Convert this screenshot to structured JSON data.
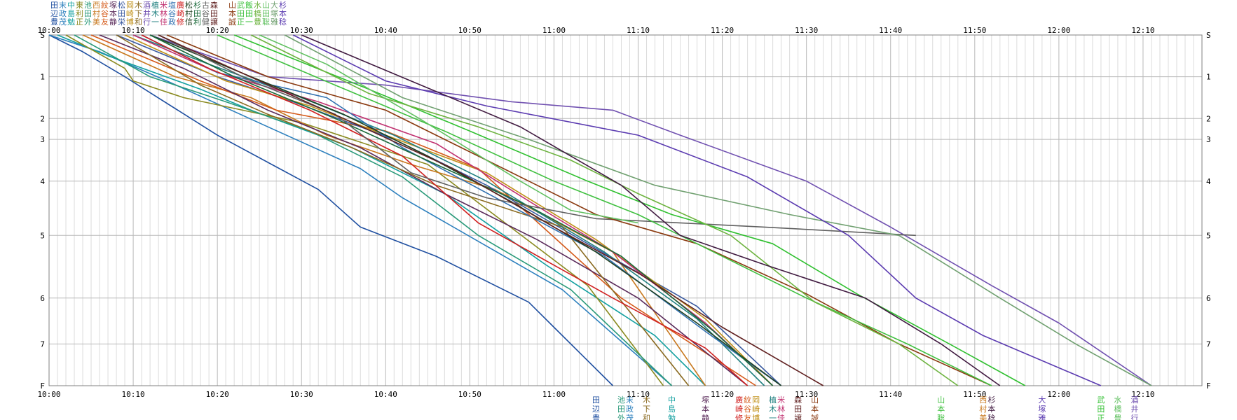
{
  "chart_data": {
    "type": "line",
    "title": "",
    "xlabel": "",
    "ylabel": "",
    "xlim": [
      "10:00",
      "12:17"
    ],
    "ylim": [
      "S",
      "F"
    ],
    "grid": true,
    "time_ticks": [
      "10:00",
      "10:10",
      "10:20",
      "10:30",
      "10:40",
      "10:50",
      "11:00",
      "11:10",
      "11:20",
      "11:30",
      "11:40",
      "11:50",
      "12:00",
      "12:10"
    ],
    "station_ticks": [
      {
        "label": "S",
        "pos": 0
      },
      {
        "label": "1",
        "pos": 1
      },
      {
        "label": "2",
        "pos": 2
      },
      {
        "label": "3",
        "pos": 2.5
      },
      {
        "label": "4",
        "pos": 3.5
      },
      {
        "label": "5",
        "pos": 4.8
      },
      {
        "label": "6",
        "pos": 6.3
      },
      {
        "label": "7",
        "pos": 7.4
      },
      {
        "label": "F",
        "pos": 8.4
      }
    ],
    "top_legend_rows": [
      "田末中東池西紋塚松岡木酒植米塩廣松杉古森",
      "辺政島利田村谷本田崎下井木林谷崎村田谷田",
      "豊茂勉正外美友静栄博和行一佳政修信利健譲"
    ],
    "top_legend_rows_2": [
      "山武飯水山大杉",
      "本田田橋田塚本",
      "誠正一豊聡雅稔"
    ],
    "series": [
      {
        "name": "田辺豊",
        "color": "#1f4fa0",
        "times": [
          "10:00",
          "10:04",
          "10:09",
          "10:20",
          "10:32",
          "10:37",
          "10:46",
          "10:57",
          "11:00",
          "11:07"
        ],
        "stations": [
          0,
          0.4,
          1.0,
          2.4,
          3.7,
          4.6,
          5.3,
          6.4,
          7.0,
          8.4
        ]
      },
      {
        "name": "末政茂",
        "color": "#2b7fbd",
        "times": [
          "10:00",
          "10:06",
          "10:14",
          "10:26",
          "10:37",
          "10:42",
          "11:01",
          "11:14"
        ],
        "stations": [
          0,
          0.4,
          1.1,
          2.2,
          3.2,
          3.9,
          6.1,
          8.4
        ]
      },
      {
        "name": "中島勉",
        "color": "#13a0a0",
        "times": [
          "10:01",
          "10:07",
          "10:18",
          "10:24",
          "10:36",
          "10:47",
          "10:59",
          "11:12",
          "11:18"
        ],
        "stations": [
          0,
          0.5,
          1.3,
          1.8,
          2.7,
          3.8,
          5.5,
          7.2,
          8.4
        ]
      },
      {
        "name": "東利正",
        "color": "#8a8a20",
        "times": [
          "10:02",
          "10:09",
          "10:10",
          "10:16",
          "10:23",
          "10:30",
          "10:45",
          "11:04",
          "11:13"
        ],
        "stations": [
          0,
          0.8,
          1.1,
          1.5,
          1.8,
          2.1,
          3.1,
          6.0,
          8.4
        ]
      },
      {
        "name": "池田外",
        "color": "#2a9a7a",
        "times": [
          "10:03",
          "10:12",
          "10:21",
          "10:31",
          "10:42",
          "10:51",
          "11:02",
          "11:14"
        ],
        "stations": [
          0,
          1.0,
          1.6,
          2.3,
          3.4,
          4.8,
          6.1,
          8.4
        ]
      },
      {
        "name": "西村美",
        "color": "#c8781e",
        "times": [
          "10:04",
          "10:15",
          "10:24",
          "10:33",
          "10:43",
          "10:53",
          "11:07",
          "11:18"
        ],
        "stations": [
          0,
          1.0,
          1.5,
          2.4,
          3.1,
          3.7,
          5.2,
          8.4
        ]
      },
      {
        "name": "紋谷友",
        "color": "#d55a1a",
        "times": [
          "10:05",
          "10:18",
          "10:27",
          "10:40",
          "10:51",
          "11:08",
          "11:24"
        ],
        "stations": [
          0,
          1.1,
          1.8,
          2.3,
          3.2,
          6.3,
          8.4
        ]
      },
      {
        "name": "塚本静",
        "color": "#5a2a5a",
        "times": [
          "10:06",
          "10:16",
          "10:26",
          "10:37",
          "10:47",
          "10:58",
          "11:10",
          "11:23"
        ],
        "stations": [
          0,
          0.8,
          1.8,
          2.7,
          3.8,
          4.9,
          6.3,
          8.4
        ]
      },
      {
        "name": "松田栄",
        "color": "#3a5aa0",
        "times": [
          "10:08",
          "10:20",
          "10:29",
          "10:41",
          "10:52",
          "11:04",
          "11:17",
          "11:27"
        ],
        "stations": [
          0,
          1.0,
          1.6,
          2.5,
          3.6,
          5.0,
          6.5,
          8.4
        ]
      },
      {
        "name": "岡崎博",
        "color": "#c09018",
        "times": [
          "10:09",
          "10:21",
          "10:31",
          "10:40",
          "10:52",
          "11:05",
          "11:18",
          "11:26"
        ],
        "stations": [
          0,
          1.1,
          1.7,
          2.4,
          3.3,
          4.9,
          6.8,
          8.4
        ]
      },
      {
        "name": "木下和",
        "color": "#8a6a20",
        "times": [
          "10:08",
          "10:18",
          "10:26",
          "10:36",
          "10:46",
          "11:01",
          "11:16"
        ],
        "stations": [
          0,
          1.2,
          1.9,
          2.7,
          3.6,
          4.6,
          8.4
        ]
      },
      {
        "name": "酒井行",
        "color": "#7050b0",
        "times": [
          "10:12",
          "10:26",
          "10:40",
          "10:55",
          "11:07",
          "11:15",
          "11:30",
          "11:40",
          "11:52",
          "12:00",
          "12:11"
        ],
        "stations": [
          0,
          1.0,
          1.2,
          1.6,
          1.8,
          2.4,
          3.5,
          4.6,
          6.0,
          6.9,
          8.4
        ]
      },
      {
        "name": "植木一",
        "color": "#208080",
        "times": [
          "10:10",
          "10:19",
          "10:30",
          "10:41",
          "10:52",
          "11:06",
          "11:17",
          "11:25"
        ],
        "stations": [
          0,
          0.7,
          1.5,
          2.4,
          3.5,
          5.2,
          6.8,
          8.4
        ]
      },
      {
        "name": "米林佳",
        "color": "#c03070",
        "times": [
          "10:10",
          "10:20",
          "10:32",
          "10:46",
          "10:58",
          "11:07",
          "11:18",
          "11:26"
        ],
        "stations": [
          0,
          0.9,
          1.6,
          2.6,
          4.1,
          5.2,
          6.9,
          8.4
        ]
      },
      {
        "name": "塩谷政",
        "color": "#3070b0",
        "times": [
          "10:11",
          "10:20",
          "10:33",
          "10:42",
          "10:54",
          "11:06",
          "11:18",
          "11:27"
        ],
        "stations": [
          0,
          0.9,
          1.5,
          2.7,
          4.0,
          5.3,
          7.1,
          8.4
        ]
      },
      {
        "name": "廣崎修",
        "color": "#d02020",
        "times": [
          "10:11",
          "10:19",
          "10:31",
          "10:42",
          "10:51",
          "11:07",
          "11:18",
          "11:23"
        ],
        "stations": [
          0,
          0.8,
          1.8,
          2.9,
          4.5,
          6.3,
          7.5,
          8.4
        ]
      },
      {
        "name": "松村信",
        "color": "#204020",
        "times": [
          "10:12",
          "10:24",
          "10:35",
          "10:45",
          "10:55",
          "11:05",
          "11:17",
          "11:27"
        ],
        "stations": [
          0,
          1.0,
          1.9,
          2.9,
          4.0,
          5.2,
          6.9,
          8.4
        ]
      },
      {
        "name": "杉田利",
        "color": "#1a6a3a",
        "times": [
          "10:12",
          "10:22",
          "10:34",
          "10:46",
          "10:57",
          "11:08",
          "11:19",
          "11:26"
        ],
        "stations": [
          0,
          1.0,
          2.0,
          3.1,
          4.1,
          5.3,
          7.1,
          8.4
        ]
      },
      {
        "name": "古谷健",
        "color": "#606060",
        "times": [
          "10:13",
          "10:24",
          "10:34",
          "10:43",
          "10:52",
          "11:05",
          "11:15",
          "11:25",
          "11:43"
        ],
        "stations": [
          0,
          1.1,
          1.9,
          3.3,
          3.9,
          4.4,
          4.5,
          4.6,
          4.8
        ]
      },
      {
        "name": "森田譲",
        "color": "#602020",
        "times": [
          "10:13",
          "10:25",
          "10:35",
          "10:48",
          "11:00",
          "11:10",
          "11:20",
          "11:32"
        ],
        "stations": [
          0,
          1.1,
          2.0,
          3.2,
          4.6,
          5.7,
          7.0,
          8.4
        ]
      },
      {
        "name": "山本誠",
        "color": "#8a3a10",
        "times": [
          "10:14",
          "10:26",
          "10:40",
          "10:52",
          "11:05",
          "11:17",
          "11:30",
          "11:41",
          "11:52"
        ],
        "stations": [
          0,
          1.0,
          1.8,
          3.0,
          4.3,
          5.0,
          6.2,
          7.4,
          8.4
        ]
      },
      {
        "name": "山本聡",
        "color": "#40c040",
        "times": [
          "10:20",
          "10:34",
          "10:47",
          "11:00",
          "11:10",
          "11:17",
          "11:30",
          "11:42",
          "11:52"
        ],
        "stations": [
          0,
          1.2,
          2.3,
          3.5,
          4.3,
          5.0,
          6.3,
          7.4,
          8.4
        ]
      },
      {
        "name": "武田正",
        "color": "#30c030",
        "times": [
          "10:22",
          "10:38",
          "10:50",
          "11:04",
          "11:14",
          "11:26",
          "11:36",
          "11:47",
          "11:56"
        ],
        "stations": [
          0,
          1.3,
          2.3,
          3.5,
          4.3,
          5.0,
          6.2,
          7.4,
          8.4
        ]
      },
      {
        "name": "飯田一",
        "color": "#6db33f",
        "times": [
          "10:24",
          "10:38",
          "10:51",
          "11:02",
          "11:10",
          "11:21",
          "11:31",
          "11:41",
          "11:48"
        ],
        "stations": [
          0,
          1.4,
          2.2,
          3.0,
          3.8,
          4.8,
          6.4,
          7.4,
          8.4
        ]
      },
      {
        "name": "水橋豊",
        "color": "#60c060",
        "times": [
          "10:25",
          "10:33",
          "10:44",
          "10:56",
          "11:02",
          "11:10"
        ],
        "stations": [
          0,
          0.7,
          2.0,
          3.5,
          4.2,
          4.5
        ]
      },
      {
        "name": "山田聡",
        "color": "#70a070",
        "times": [
          "10:28",
          "10:42",
          "10:57",
          "11:12",
          "11:28",
          "11:41",
          "11:53",
          "12:02",
          "12:11"
        ],
        "stations": [
          0,
          1.5,
          2.5,
          3.6,
          4.3,
          4.8,
          6.3,
          7.4,
          8.4
        ]
      },
      {
        "name": "大塚雅",
        "color": "#5a3ab0",
        "times": [
          "10:29",
          "10:40",
          "10:52",
          "11:10",
          "11:23",
          "11:35",
          "11:43",
          "11:51",
          "12:05"
        ],
        "stations": [
          0,
          1.1,
          1.7,
          2.4,
          3.4,
          4.8,
          6.3,
          7.2,
          8.4
        ]
      },
      {
        "name": "杉本稔",
        "color": "#401a40",
        "times": [
          "10:30",
          "10:43",
          "10:56",
          "11:08",
          "11:15",
          "11:25",
          "11:37",
          "11:46",
          "11:53"
        ],
        "stations": [
          0,
          1.1,
          2.2,
          3.6,
          4.8,
          5.5,
          6.3,
          7.4,
          8.4
        ]
      }
    ],
    "finish_labels": [
      {
        "text": "田辺豊",
        "color": "#1f4fa0",
        "time": "11:05"
      },
      {
        "text": "池田外",
        "color": "#2a9a7a",
        "time": "11:08"
      },
      {
        "text": "末政茂",
        "color": "#2b7fbd",
        "time": "11:09"
      },
      {
        "text": "木下和",
        "color": "#8a6a20",
        "time": "11:11"
      },
      {
        "text": "中島勉",
        "color": "#13a0a0",
        "time": "11:14"
      },
      {
        "text": "塚本静",
        "color": "#5a2a5a",
        "time": "11:18"
      },
      {
        "text": "廣崎修",
        "color": "#d02020",
        "time": "11:22"
      },
      {
        "text": "紋谷友",
        "color": "#d55a1a",
        "time": "11:23"
      },
      {
        "text": "岡崎博",
        "color": "#c09018",
        "time": "11:24"
      },
      {
        "text": "植木一",
        "color": "#208080",
        "time": "11:26"
      },
      {
        "text": "米林佳",
        "color": "#c03070",
        "time": "11:27"
      },
      {
        "text": "森田譲",
        "color": "#602020",
        "time": "11:29"
      },
      {
        "text": "山本誠",
        "color": "#8a3a10",
        "time": "11:31"
      },
      {
        "text": "山本聡",
        "color": "#40c040",
        "time": "11:46"
      },
      {
        "text": "西村美",
        "color": "#c8781e",
        "time": "11:51"
      },
      {
        "text": "杉本稔",
        "color": "#401a40",
        "time": "11:52"
      },
      {
        "text": "大塚雅",
        "color": "#5a3ab0",
        "time": "11:58"
      },
      {
        "text": "武田正",
        "color": "#30c030",
        "time": "12:05"
      },
      {
        "text": "水橋豊",
        "color": "#60c060",
        "time": "12:07"
      },
      {
        "text": "酒井行",
        "color": "#7050b0",
        "time": "12:09"
      }
    ]
  }
}
